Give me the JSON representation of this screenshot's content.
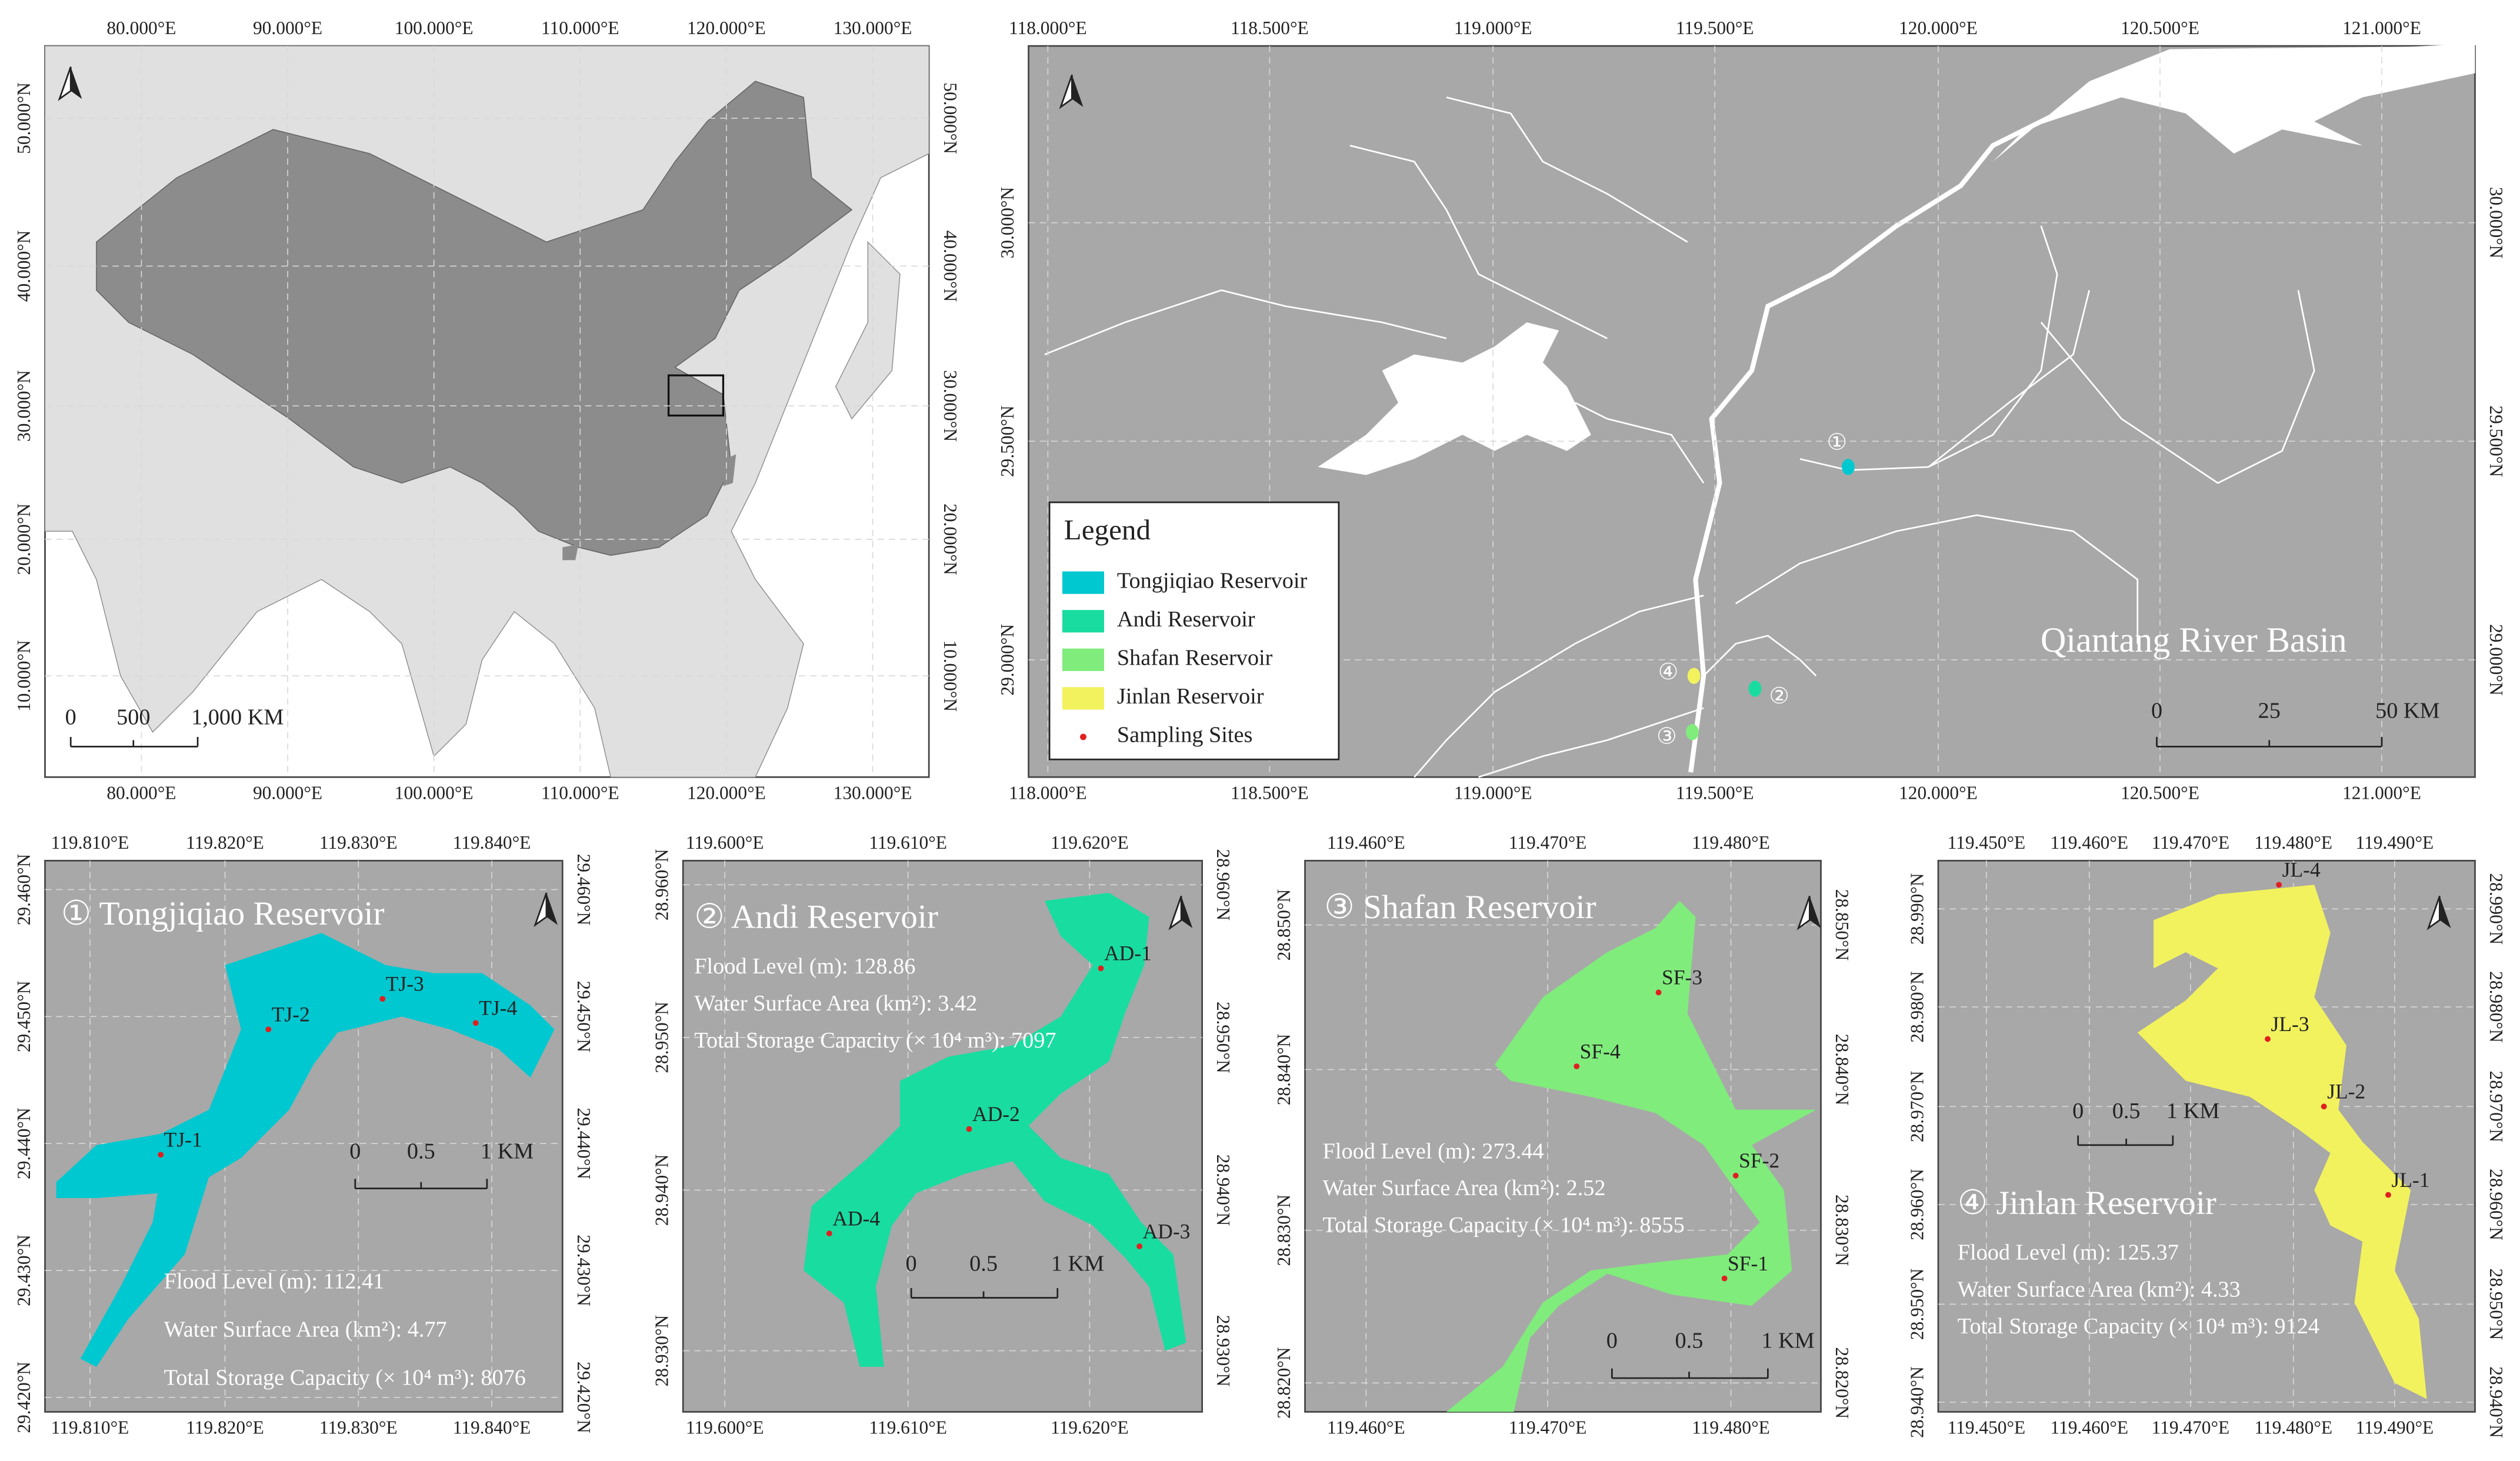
{
  "overview_map": {
    "x_ticks": [
      "80.000°E",
      "90.000°E",
      "100.000°E",
      "110.000°E",
      "120.000°E",
      "130.000°E"
    ],
    "y_ticks": [
      "50.000°N",
      "40.000°N",
      "30.000°N",
      "20.000°N",
      "10.000°N"
    ],
    "scale_bar": [
      "0",
      "500",
      "1,000 KM"
    ]
  },
  "basin_map": {
    "x_ticks": [
      "118.000°E",
      "118.500°E",
      "119.000°E",
      "119.500°E",
      "120.000°E",
      "120.500°E",
      "121.000°E"
    ],
    "y_ticks": [
      "30.000°N",
      "29.500°N",
      "29.000°N"
    ],
    "title": "Qiantang River Basin",
    "reservoir_markers": [
      "①",
      "②",
      "③",
      "④"
    ],
    "scale_bar": [
      "0",
      "25",
      "50 KM"
    ],
    "legend": {
      "title": "Legend",
      "items": [
        {
          "label": "Tongjiqiao Reservoir",
          "color": "#00c8d0"
        },
        {
          "label": "Andi Reservoir",
          "color": "#19dca0"
        },
        {
          "label": "Shafan Reservoir",
          "color": "#80ec7c"
        },
        {
          "label": "Jinlan Reservoir",
          "color": "#f2f25e"
        },
        {
          "label": "Sampling Sites",
          "color": "#e02020"
        }
      ]
    }
  },
  "reservoir_maps": [
    {
      "title": "① Tongjiqiao Reservoir",
      "color": "#00c8d0",
      "x_ticks": [
        "119.810°E",
        "119.820°E",
        "119.830°E",
        "119.840°E"
      ],
      "y_ticks": [
        "29.460°N",
        "29.450°N",
        "29.440°N",
        "29.430°N",
        "29.420°N"
      ],
      "info": [
        "Flood Level (m): 112.41",
        "Water Surface Area (km²): 4.77",
        "Total Storage Capacity (× 10⁴ m³): 8076"
      ],
      "sites": [
        "TJ-1",
        "TJ-2",
        "TJ-3",
        "TJ-4"
      ],
      "scale_bar": [
        "0",
        "0.5",
        "1 KM"
      ]
    },
    {
      "title": "② Andi Reservoir",
      "color": "#19dca0",
      "x_ticks": [
        "119.600°E",
        "119.610°E",
        "119.620°E"
      ],
      "y_ticks": [
        "28.960°N",
        "28.950°N",
        "28.940°N",
        "28.930°N"
      ],
      "info": [
        "Flood Level (m): 128.86",
        "Water Surface Area (km²): 3.42",
        "Total Storage Capacity (× 10⁴ m³): 7097"
      ],
      "sites": [
        "AD-1",
        "AD-2",
        "AD-3",
        "AD-4"
      ],
      "scale_bar": [
        "0",
        "0.5",
        "1 KM"
      ]
    },
    {
      "title": "③ Shafan Reservoir",
      "color": "#80ec7c",
      "x_ticks": [
        "119.460°E",
        "119.470°E",
        "119.480°E"
      ],
      "y_ticks": [
        "28.850°N",
        "28.840°N",
        "28.830°N",
        "28.820°N"
      ],
      "info": [
        "Flood Level (m): 273.44",
        "Water Surface Area (km²): 2.52",
        "Total Storage Capacity (× 10⁴ m³): 8555"
      ],
      "sites": [
        "SF-1",
        "SF-2",
        "SF-3",
        "SF-4"
      ],
      "scale_bar": [
        "0",
        "0.5",
        "1 KM"
      ]
    },
    {
      "title": "④ Jinlan Reservoir",
      "color": "#f2f25e",
      "x_ticks": [
        "119.450°E",
        "119.460°E",
        "119.470°E",
        "119.480°E",
        "119.490°E"
      ],
      "y_ticks": [
        "28.990°N",
        "28.980°N",
        "28.970°N",
        "28.960°N",
        "28.950°N",
        "28.940°N"
      ],
      "info": [
        "Flood Level (m): 125.37",
        "Water Surface Area (km²): 4.33",
        "Total Storage Capacity (× 10⁴ m³): 9124"
      ],
      "sites": [
        "JL-1",
        "JL-2",
        "JL-3",
        "JL-4"
      ],
      "scale_bar": [
        "0",
        "0.5",
        "1 KM"
      ]
    }
  ]
}
